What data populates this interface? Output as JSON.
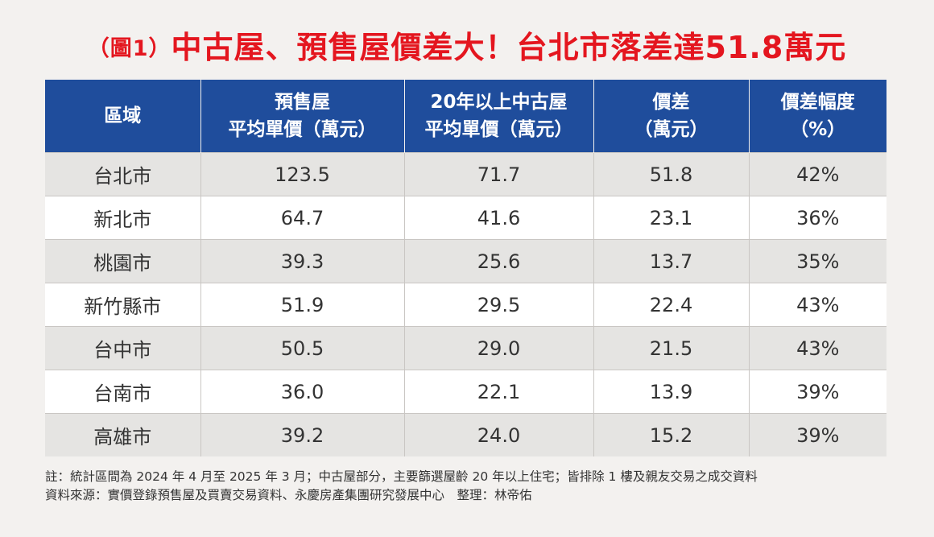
{
  "title": {
    "prefix": "（圖1）",
    "main": "中古屋、預售屋價差大！台北市落差達51.8萬元"
  },
  "table": {
    "headers": [
      [
        "區域"
      ],
      [
        "預售屋",
        "平均單價（萬元）"
      ],
      [
        "20年以上中古屋",
        "平均單價（萬元）"
      ],
      [
        "價差",
        "（萬元）"
      ],
      [
        "價差幅度",
        "（%）"
      ]
    ],
    "rows": [
      [
        "台北市",
        "123.5",
        "71.7",
        "51.8",
        "42%"
      ],
      [
        "新北市",
        "64.7",
        "41.6",
        "23.1",
        "36%"
      ],
      [
        "桃園市",
        "39.3",
        "25.6",
        "13.7",
        "35%"
      ],
      [
        "新竹縣市",
        "51.9",
        "29.5",
        "22.4",
        "43%"
      ],
      [
        "台中市",
        "50.5",
        "29.0",
        "21.5",
        "43%"
      ],
      [
        "台南市",
        "36.0",
        "22.1",
        "13.9",
        "39%"
      ],
      [
        "高雄市",
        "39.2",
        "24.0",
        "15.2",
        "39%"
      ]
    ]
  },
  "notes": {
    "note": "註：統計區間為 2024 年 4 月至 2025 年 3 月；中古屋部分，主要篩選屋齡 20 年以上住宅；皆排除 1 樓及親友交易之成交資料",
    "source": "資料來源：實價登錄預售屋及買賣交易資料、永慶房產集團研究發展中心　整理：林帝佑"
  },
  "colors": {
    "title": "#e4161f",
    "header_bg": "#1f4d9c",
    "row_alt_bg": "#e5e4e2",
    "page_bg": "#f3f1ef"
  }
}
